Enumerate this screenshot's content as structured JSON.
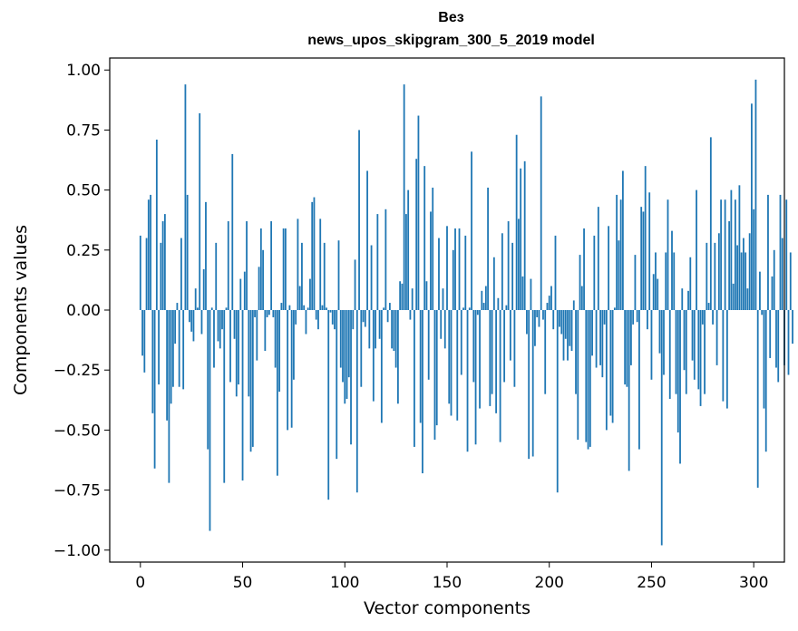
{
  "chart_data": {
    "type": "bar",
    "title_line1": "Вез",
    "title_line2": "news_upos_skipgram_300_5_2019 model",
    "xlabel": "Vector components",
    "ylabel": "Components values",
    "xlim": [
      -15,
      315
    ],
    "ylim": [
      -1.05,
      1.05
    ],
    "x_ticks": [
      0,
      50,
      100,
      150,
      200,
      250,
      300
    ],
    "y_ticks": [
      1.0,
      0.75,
      0.5,
      0.25,
      0.0,
      -0.25,
      -0.5,
      -0.75,
      -1.0
    ],
    "x_tick_labels": [
      "0",
      "50",
      "100",
      "150",
      "200",
      "250",
      "300"
    ],
    "y_tick_labels": [
      "1.00",
      "0.75",
      "0.50",
      "0.25",
      "0.00",
      "−0.25",
      "−0.50",
      "−0.75",
      "−1.00"
    ],
    "bar_color": "#1f77b4",
    "values": [
      0.31,
      -0.19,
      -0.26,
      0.3,
      0.46,
      0.48,
      -0.43,
      -0.66,
      0.71,
      -0.31,
      0.28,
      0.37,
      0.4,
      -0.46,
      -0.72,
      -0.39,
      -0.32,
      -0.14,
      0.03,
      -0.32,
      0.3,
      -0.33,
      0.94,
      0.48,
      -0.05,
      -0.09,
      -0.13,
      0.09,
      0.01,
      0.82,
      -0.1,
      0.17,
      0.45,
      -0.58,
      -0.92,
      0.01,
      -0.24,
      0.28,
      -0.13,
      -0.16,
      -0.08,
      -0.72,
      0.01,
      0.37,
      -0.3,
      0.65,
      -0.12,
      -0.36,
      -0.31,
      0.13,
      -0.71,
      0.16,
      0.37,
      -0.36,
      -0.59,
      -0.57,
      -0.03,
      -0.21,
      0.18,
      0.34,
      0.25,
      -0.17,
      -0.03,
      -0.02,
      0.37,
      -0.03,
      -0.24,
      -0.69,
      -0.34,
      0.03,
      0.34,
      0.34,
      -0.5,
      0.02,
      -0.49,
      -0.29,
      -0.06,
      0.38,
      0.1,
      0.28,
      0.02,
      -0.1,
      0.01,
      0.13,
      0.45,
      0.47,
      -0.04,
      -0.08,
      0.38,
      0.02,
      0.28,
      0.01,
      -0.79,
      -0.01,
      -0.06,
      -0.08,
      -0.62,
      0.29,
      -0.24,
      -0.3,
      -0.39,
      -0.37,
      -0.28,
      -0.56,
      -0.08,
      0.21,
      -0.76,
      0.75,
      -0.32,
      -0.05,
      -0.07,
      0.58,
      -0.16,
      0.27,
      -0.38,
      -0.16,
      0.4,
      -0.12,
      -0.47,
      0.01,
      0.42,
      -0.05,
      0.03,
      -0.16,
      -0.17,
      -0.24,
      -0.39,
      0.12,
      0.11,
      0.94,
      0.4,
      0.5,
      -0.04,
      0.09,
      -0.57,
      0.63,
      0.81,
      -0.47,
      -0.68,
      0.6,
      0.12,
      -0.29,
      0.41,
      0.51,
      -0.54,
      -0.48,
      0.3,
      -0.12,
      0.09,
      -0.16,
      0.35,
      -0.39,
      -0.44,
      0.25,
      0.34,
      -0.46,
      0.34,
      -0.27,
      0.01,
      0.31,
      -0.59,
      0.01,
      0.66,
      -0.3,
      -0.56,
      -0.02,
      -0.41,
      0.08,
      0.03,
      0.1,
      0.51,
      -0.4,
      -0.35,
      0.22,
      -0.43,
      0.05,
      -0.55,
      0.32,
      -0.3,
      0.02,
      0.37,
      -0.21,
      0.28,
      -0.32,
      0.73,
      0.38,
      0.59,
      0.14,
      0.62,
      -0.1,
      -0.62,
      0.13,
      -0.61,
      -0.15,
      -0.03,
      -0.07,
      0.89,
      -0.04,
      -0.35,
      0.03,
      0.06,
      0.1,
      -0.08,
      0.31,
      -0.76,
      -0.07,
      -0.1,
      -0.21,
      -0.12,
      -0.21,
      -0.15,
      -0.17,
      0.04,
      -0.35,
      -0.54,
      0.23,
      0.1,
      0.34,
      -0.55,
      -0.58,
      -0.57,
      -0.19,
      0.31,
      -0.24,
      0.43,
      -0.23,
      -0.28,
      -0.06,
      -0.5,
      0.35,
      -0.44,
      -0.47,
      0.01,
      0.48,
      0.29,
      0.46,
      0.58,
      -0.31,
      -0.32,
      -0.67,
      -0.23,
      -0.06,
      0.23,
      -0.05,
      -0.58,
      0.43,
      0.41,
      0.6,
      -0.08,
      0.49,
      -0.29,
      0.15,
      0.24,
      0.13,
      -0.18,
      -0.98,
      -0.27,
      0.24,
      0.46,
      -0.37,
      0.33,
      0.24,
      -0.35,
      -0.51,
      -0.64,
      0.09,
      -0.25,
      -0.35,
      0.08,
      0.22,
      -0.21,
      -0.29,
      0.5,
      -0.33,
      -0.4,
      -0.06,
      -0.35,
      0.28,
      0.03,
      0.72,
      -0.06,
      0.28,
      -0.23,
      0.32,
      0.46,
      -0.38,
      0.46,
      -0.41,
      0.37,
      0.5,
      0.11,
      0.46,
      0.27,
      0.52,
      0.24,
      0.3,
      0.24,
      0.09,
      0.32,
      0.86,
      0.42,
      0.96,
      -0.74,
      0.16,
      -0.02,
      -0.41,
      -0.59,
      0.48,
      -0.2,
      0.14,
      0.25,
      -0.24,
      -0.3,
      0.48,
      0.3,
      -0.23,
      0.46,
      -0.27,
      0.24,
      -0.14
    ]
  }
}
